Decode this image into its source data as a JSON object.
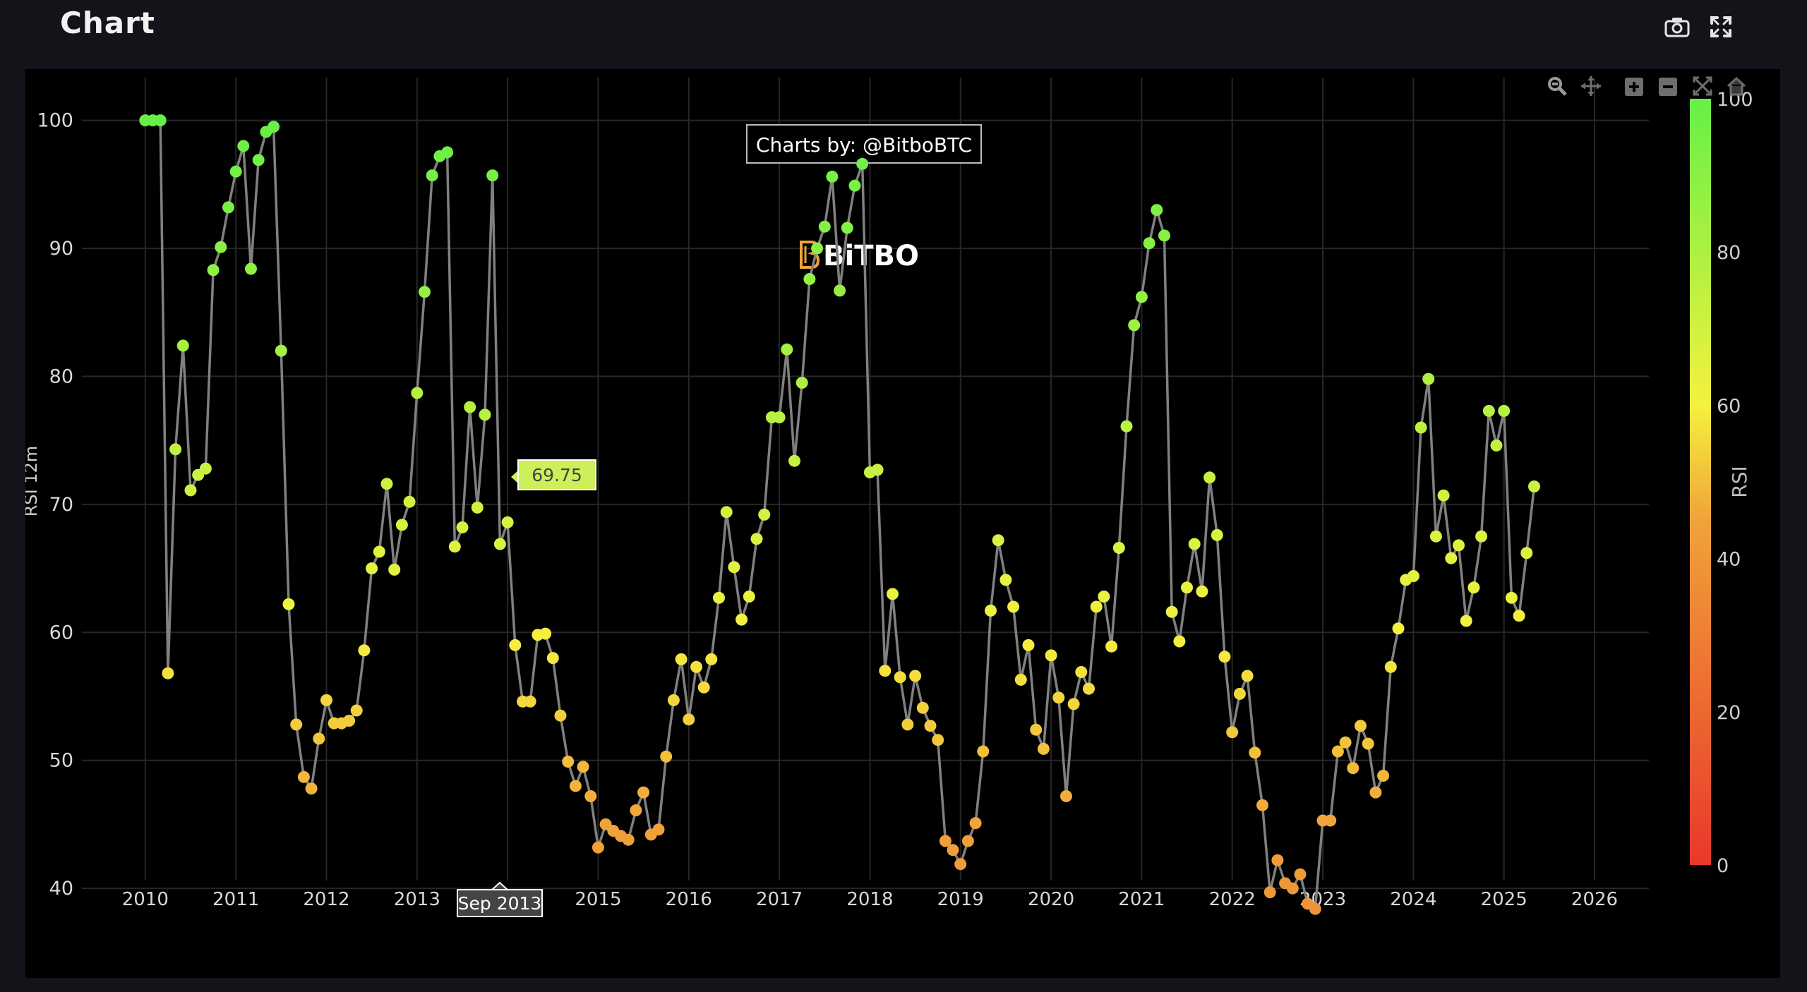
{
  "header": {
    "title": "Chart",
    "camera_icon": "camera-icon",
    "fullscreen_icon": "expand-icon"
  },
  "modebar": [
    "zoom-icon",
    "pan-icon",
    "zoom-in-icon",
    "zoom-out-icon",
    "autoscale-icon",
    "reset-home-icon"
  ],
  "watermark": {
    "credit": "Charts by: @BitboBTC",
    "logo_text": "BiTBO"
  },
  "tooltip": {
    "value": "69.75",
    "date": "Sep 2013"
  },
  "chart_data": {
    "type": "scatter",
    "mode": "lines+markers",
    "ylabel": "RSI 12m",
    "xlim": [
      2009.3,
      2026.6
    ],
    "ylim": [
      34,
      104
    ],
    "x_ticks": [
      "2010",
      "2011",
      "2012",
      "2013",
      "2014",
      "2015",
      "2016",
      "2017",
      "2018",
      "2019",
      "2020",
      "2021",
      "2022",
      "2023",
      "2024",
      "2025",
      "2026"
    ],
    "y_ticks": [
      40,
      50,
      60,
      70,
      80,
      90,
      100
    ],
    "colorbar": {
      "title": "RSI",
      "ticks": [
        0,
        20,
        40,
        60,
        80,
        100
      ],
      "colors": [
        "#e8382a",
        "#f5f13f",
        "#66f046"
      ]
    },
    "grid": true,
    "start": "2010-01",
    "step": "monthly",
    "values": [
      100,
      100,
      100,
      56.8,
      74.3,
      82.4,
      71.1,
      72.3,
      72.8,
      88.3,
      90.1,
      93.2,
      96,
      98,
      88.4,
      96.9,
      99.1,
      99.5,
      82,
      62.2,
      52.8,
      48.7,
      47.8,
      51.7,
      54.7,
      52.9,
      52.9,
      53.1,
      53.9,
      58.6,
      65,
      66.3,
      71.6,
      64.9,
      68.4,
      70.2,
      78.7,
      86.6,
      95.7,
      97.2,
      97.5,
      66.7,
      68.2,
      77.6,
      69.75,
      77,
      95.7,
      66.9,
      68.6,
      59,
      54.6,
      54.6,
      59.8,
      59.9,
      58,
      53.5,
      49.9,
      48,
      49.5,
      47.2,
      43.2,
      45,
      44.5,
      44.1,
      43.8,
      46.1,
      47.5,
      44.2,
      44.6,
      50.3,
      54.7,
      57.9,
      53.2,
      57.3,
      55.7,
      57.9,
      62.7,
      69.4,
      65.1,
      61,
      62.8,
      67.3,
      69.2,
      76.8,
      76.8,
      82.1,
      73.4,
      79.5,
      87.6,
      90,
      91.7,
      95.6,
      86.7,
      91.6,
      94.9,
      96.6,
      72.5,
      72.7,
      57,
      63,
      56.5,
      52.8,
      56.6,
      54.1,
      52.7,
      51.6,
      43.7,
      43,
      41.9,
      43.7,
      45.1,
      50.7,
      61.7,
      67.2,
      64.1,
      62,
      56.3,
      59,
      52.4,
      50.9,
      58.2,
      54.9,
      47.2,
      54.4,
      56.9,
      55.6,
      62,
      62.8,
      58.9,
      66.6,
      76.1,
      84,
      86.2,
      90.4,
      93,
      91,
      61.6,
      59.3,
      63.5,
      66.9,
      63.2,
      72.1,
      67.6,
      58.1,
      52.2,
      55.2,
      56.6,
      50.6,
      46.5,
      39.7,
      42.2,
      40.4,
      40,
      41.1,
      38.8,
      38.4,
      45.3,
      45.3,
      50.7,
      51.4,
      49.4,
      52.7,
      51.3,
      47.5,
      48.8,
      57.3,
      60.3,
      64.1,
      64.4,
      76,
      79.8,
      67.5,
      70.7,
      65.8,
      66.8,
      60.9,
      63.5,
      67.5,
      77.3,
      74.6,
      77.3,
      62.7,
      61.3,
      66.2,
      71.4
    ]
  }
}
